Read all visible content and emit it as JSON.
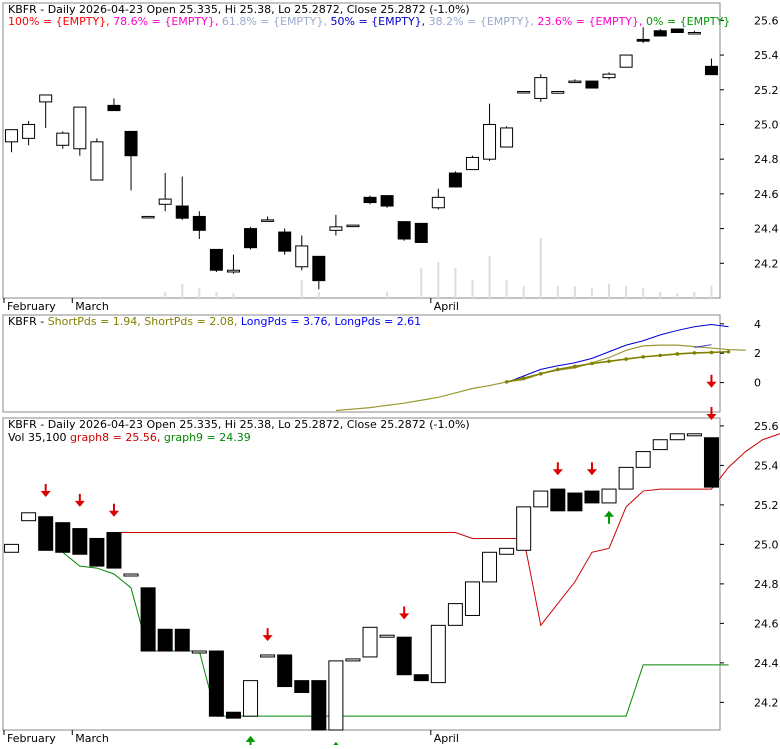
{
  "chart_data": [
    {
      "type": "candlestick",
      "title": "KBFR - Daily 2026-04-23 Open 25.335, Hi 25.38, Lo 25.2872, Close 25.2872 (-1.0%)",
      "ylim": [
        24.0,
        25.7
      ],
      "yticks": [
        24.2,
        24.4,
        24.6,
        24.8,
        25.0,
        25.2,
        25.4,
        25.6
      ],
      "xlabels": [
        {
          "label": "February",
          "i": 0
        },
        {
          "label": "March",
          "i": 4
        },
        {
          "label": "April",
          "i": 25
        }
      ],
      "fib_legend": [
        {
          "text": "100% = {EMPTY},",
          "color": "#ff0000"
        },
        {
          "text": "78.6% = {EMPTY},",
          "color": "#ff00cc"
        },
        {
          "text": "61.8% = {EMPTY},",
          "color": "#99aacc"
        },
        {
          "text": "50% = {EMPTY},",
          "color": "#0000cc"
        },
        {
          "text": "38.2% = {EMPTY},",
          "color": "#99aacc"
        },
        {
          "text": "23.6% = {EMPTY},",
          "color": "#ff00cc"
        },
        {
          "text": "0% = {EMPTY}",
          "color": "#009900"
        }
      ],
      "candles": [
        {
          "o": 24.9,
          "h": 24.96,
          "l": 24.84,
          "c": 24.97
        },
        {
          "o": 24.92,
          "h": 25.02,
          "l": 24.88,
          "c": 25.0
        },
        {
          "o": 25.13,
          "h": 25.16,
          "l": 24.98,
          "c": 25.17
        },
        {
          "o": 24.88,
          "h": 24.96,
          "l": 24.86,
          "c": 24.95
        },
        {
          "o": 24.86,
          "h": 25.1,
          "l": 24.82,
          "c": 25.1
        },
        {
          "o": 24.68,
          "h": 24.92,
          "l": 24.68,
          "c": 24.9
        },
        {
          "o": 25.11,
          "h": 25.15,
          "l": 25.08,
          "c": 25.08
        },
        {
          "o": 24.96,
          "h": 24.96,
          "l": 24.62,
          "c": 24.82
        },
        {
          "o": 24.47,
          "h": 24.47,
          "l": 24.46,
          "c": 24.47
        },
        {
          "o": 24.54,
          "h": 24.72,
          "l": 24.5,
          "c": 24.57
        },
        {
          "o": 24.53,
          "h": 24.7,
          "l": 24.45,
          "c": 24.46
        },
        {
          "o": 24.47,
          "h": 24.5,
          "l": 24.34,
          "c": 24.39
        },
        {
          "o": 24.28,
          "h": 24.28,
          "l": 24.15,
          "c": 24.16
        },
        {
          "o": 24.15,
          "h": 24.25,
          "l": 24.14,
          "c": 24.16
        },
        {
          "o": 24.4,
          "h": 24.41,
          "l": 24.28,
          "c": 24.29
        },
        {
          "o": 24.45,
          "h": 24.47,
          "l": 24.44,
          "c": 24.45
        },
        {
          "o": 24.38,
          "h": 24.4,
          "l": 24.25,
          "c": 24.27
        },
        {
          "o": 24.18,
          "h": 24.36,
          "l": 24.16,
          "c": 24.3
        },
        {
          "o": 24.24,
          "h": 24.24,
          "l": 24.05,
          "c": 24.1
        },
        {
          "o": 24.39,
          "h": 24.48,
          "l": 24.36,
          "c": 24.41
        },
        {
          "o": 24.42,
          "h": 24.42,
          "l": 24.42,
          "c": 24.42
        },
        {
          "o": 24.58,
          "h": 24.59,
          "l": 24.54,
          "c": 24.55
        },
        {
          "o": 24.59,
          "h": 24.59,
          "l": 24.52,
          "c": 24.53
        },
        {
          "o": 24.44,
          "h": 24.44,
          "l": 24.33,
          "c": 24.34
        },
        {
          "o": 24.43,
          "h": 24.43,
          "l": 24.32,
          "c": 24.32
        },
        {
          "o": 24.52,
          "h": 24.63,
          "l": 24.51,
          "c": 24.58
        },
        {
          "o": 24.72,
          "h": 24.73,
          "l": 24.64,
          "c": 24.64
        },
        {
          "o": 24.74,
          "h": 24.82,
          "l": 24.74,
          "c": 24.81
        },
        {
          "o": 24.8,
          "h": 25.12,
          "l": 24.79,
          "c": 25.0
        },
        {
          "o": 24.87,
          "h": 24.99,
          "l": 24.87,
          "c": 24.98
        },
        {
          "o": 25.19,
          "h": 25.19,
          "l": 25.19,
          "c": 25.19
        },
        {
          "o": 25.15,
          "h": 25.29,
          "l": 25.13,
          "c": 25.27
        },
        {
          "o": 25.18,
          "h": 25.18,
          "l": 25.18,
          "c": 25.19
        },
        {
          "o": 25.25,
          "h": 25.26,
          "l": 25.25,
          "c": 25.25
        },
        {
          "o": 25.25,
          "h": 25.25,
          "l": 25.21,
          "c": 25.21
        },
        {
          "o": 25.27,
          "h": 25.3,
          "l": 25.26,
          "c": 25.29
        },
        {
          "o": 25.33,
          "h": 25.4,
          "l": 25.33,
          "c": 25.4
        },
        {
          "o": 25.49,
          "h": 25.56,
          "l": 25.47,
          "c": 25.48
        },
        {
          "o": 25.54,
          "h": 25.55,
          "l": 25.51,
          "c": 25.51
        },
        {
          "o": 25.55,
          "h": 25.55,
          "l": 25.53,
          "c": 25.53
        },
        {
          "o": 25.53,
          "h": 25.54,
          "l": 25.52,
          "c": 25.53
        },
        {
          "o": 25.335,
          "h": 25.38,
          "l": 25.2872,
          "c": 25.2872
        }
      ],
      "volume": [
        0,
        0,
        0,
        0,
        0,
        0,
        0,
        0,
        0,
        0.05,
        0.12,
        0.08,
        0.05,
        0.04,
        0,
        0,
        0,
        0.15,
        0.05,
        0,
        0,
        0,
        0.05,
        0,
        0.25,
        0.3,
        0.25,
        0.15,
        0.35,
        0.15,
        0.1,
        0.5,
        0.1,
        0.1,
        0.08,
        0.12,
        0.1,
        0.08,
        0.05,
        0.04,
        0.05,
        0.1
      ]
    },
    {
      "type": "line",
      "title_parts": [
        {
          "text": "KBFR - ",
          "color": "#000000"
        },
        {
          "text": "ShortPds = 1.94,",
          "color": "#808000"
        },
        {
          "text": "ShortPds = 2.08,",
          "color": "#808000"
        },
        {
          "text": "LongPds = 3.76,",
          "color": "#0000ff"
        },
        {
          "text": "LongPds = 2.61",
          "color": "#0000ff"
        }
      ],
      "ylim": [
        -2.0,
        4.6
      ],
      "yticks": [
        0,
        2,
        4
      ],
      "series": [
        {
          "color": "#999933",
          "width": 1.2,
          "x_start": 19,
          "values": [
            -1.9,
            -1.8,
            -1.7,
            -1.55,
            -1.4,
            -1.2,
            -1.0,
            -0.7,
            -0.4,
            -0.2,
            0.05,
            0.2,
            0.6,
            0.85,
            1.0,
            1.35,
            1.7,
            2.2,
            2.5,
            2.55,
            2.55,
            2.45,
            2.35,
            2.25,
            2.2
          ]
        },
        {
          "color": "#0000cc",
          "width": 1.0,
          "x_start": 29,
          "values": [
            0.0,
            0.45,
            0.9,
            1.15,
            1.35,
            1.65,
            2.1,
            2.55,
            2.85,
            3.25,
            3.55,
            3.8,
            3.95,
            3.8
          ]
        },
        {
          "color": "#808000",
          "width": 1.6,
          "dotted": true,
          "x_start": 29,
          "values": [
            0.05,
            0.3,
            0.6,
            0.9,
            1.1,
            1.3,
            1.45,
            1.6,
            1.75,
            1.85,
            1.95,
            2.02,
            2.05,
            2.1
          ]
        },
        {
          "color": "#3333cc",
          "width": 1.0,
          "x_start": 40,
          "values": [
            2.4,
            2.58
          ]
        }
      ],
      "markers": [
        {
          "i": 41,
          "y": -0.35,
          "dir": "down",
          "color": "#dd0000"
        }
      ]
    },
    {
      "type": "candlestick",
      "title": "KBFR - Daily 2026-04-23 Open 25.335, Hi 25.38, Lo 25.2872, Close 25.2872 (-1.0%)",
      "subtitle_parts": [
        {
          "text": "Vol 35,100",
          "color": "#000000"
        },
        {
          "text": "graph8 = 25.56,",
          "color": "#cc0000"
        },
        {
          "text": "graph9 = 24.39",
          "color": "#008800"
        }
      ],
      "ylim": [
        24.06,
        25.64
      ],
      "yticks": [
        24.2,
        24.4,
        24.6,
        24.8,
        25.0,
        25.2,
        25.4,
        25.6
      ],
      "xlabels": [
        {
          "label": "February",
          "i": 0
        },
        {
          "label": "March",
          "i": 4
        },
        {
          "label": "April",
          "i": 25
        }
      ],
      "candles": [
        {
          "o": 24.96,
          "c": 25.0
        },
        {
          "o": 25.12,
          "c": 25.16
        },
        {
          "o": 25.14,
          "c": 24.97
        },
        {
          "o": 25.11,
          "c": 24.96
        },
        {
          "o": 25.08,
          "c": 24.95
        },
        {
          "o": 25.03,
          "c": 24.89
        },
        {
          "o": 25.06,
          "c": 24.88
        },
        {
          "o": 24.85,
          "c": 24.85
        },
        {
          "o": 24.78,
          "c": 24.46
        },
        {
          "o": 24.57,
          "c": 24.46
        },
        {
          "o": 24.57,
          "c": 24.46
        },
        {
          "o": 24.46,
          "c": 24.46
        },
        {
          "o": 24.46,
          "c": 24.13
        },
        {
          "o": 24.15,
          "c": 24.12
        },
        {
          "o": 24.13,
          "c": 24.31
        },
        {
          "o": 24.43,
          "c": 24.44
        },
        {
          "o": 24.44,
          "c": 24.28
        },
        {
          "o": 24.31,
          "c": 24.25
        },
        {
          "o": 24.31,
          "c": 24.06
        },
        {
          "o": 24.06,
          "c": 24.41
        },
        {
          "o": 24.41,
          "c": 24.42
        },
        {
          "o": 24.43,
          "c": 24.58
        },
        {
          "o": 24.54,
          "c": 24.54
        },
        {
          "o": 24.53,
          "c": 24.34
        },
        {
          "o": 24.34,
          "c": 24.31
        },
        {
          "o": 24.3,
          "c": 24.59
        },
        {
          "o": 24.59,
          "c": 24.7
        },
        {
          "o": 24.64,
          "c": 24.81
        },
        {
          "o": 24.81,
          "c": 24.96
        },
        {
          "o": 24.95,
          "c": 24.98
        },
        {
          "o": 24.97,
          "c": 25.19
        },
        {
          "o": 25.19,
          "c": 25.27
        },
        {
          "o": 25.28,
          "c": 25.17
        },
        {
          "o": 25.26,
          "c": 25.17
        },
        {
          "o": 25.27,
          "c": 25.21
        },
        {
          "o": 25.21,
          "c": 25.28
        },
        {
          "o": 25.28,
          "c": 25.39
        },
        {
          "o": 25.39,
          "c": 25.47
        },
        {
          "o": 25.48,
          "c": 25.53
        },
        {
          "o": 25.53,
          "c": 25.56
        },
        {
          "o": 25.55,
          "c": 25.56
        },
        {
          "o": 25.54,
          "c": 25.29
        }
      ],
      "red_line": {
        "x_start": 6,
        "values": [
          25.06,
          25.06,
          25.06,
          25.06,
          25.06,
          25.06,
          25.06,
          25.06,
          25.06,
          25.06,
          25.06,
          25.06,
          25.06,
          25.06,
          25.06,
          25.06,
          25.06,
          25.06,
          25.06,
          25.06,
          25.06,
          25.03,
          25.03,
          25.03,
          25.03,
          24.59,
          24.7,
          24.81,
          24.96,
          24.98,
          25.19,
          25.27,
          25.28,
          25.28,
          25.28,
          25.28,
          25.39,
          25.47,
          25.53,
          25.56,
          25.56,
          25.56
        ]
      },
      "green_line": {
        "x_start": 3,
        "values": [
          24.96,
          24.89,
          24.88,
          24.85,
          24.78,
          24.46,
          24.46,
          24.46,
          24.46,
          24.13,
          24.13,
          24.13,
          24.13,
          24.13,
          24.13,
          24.13,
          24.13,
          24.13,
          24.13,
          24.13,
          24.13,
          24.13,
          24.13,
          24.13,
          24.13,
          24.13,
          24.13,
          24.13,
          24.13,
          24.13,
          24.13,
          24.13,
          24.13,
          24.13,
          24.39,
          24.39,
          24.39,
          24.39,
          24.39,
          24.39
        ]
      },
      "markers": [
        {
          "i": 2,
          "y": 25.24,
          "dir": "down",
          "color": "#dd0000"
        },
        {
          "i": 4,
          "y": 25.19,
          "dir": "down",
          "color": "#dd0000"
        },
        {
          "i": 6,
          "y": 25.14,
          "dir": "down",
          "color": "#dd0000"
        },
        {
          "i": 14,
          "y": 24.03,
          "dir": "up",
          "color": "#009900"
        },
        {
          "i": 15,
          "y": 24.51,
          "dir": "down",
          "color": "#dd0000"
        },
        {
          "i": 19,
          "y": 24.0,
          "dir": "up",
          "color": "#009900"
        },
        {
          "i": 23,
          "y": 24.62,
          "dir": "down",
          "color": "#dd0000"
        },
        {
          "i": 32,
          "y": 25.35,
          "dir": "down",
          "color": "#dd0000"
        },
        {
          "i": 34,
          "y": 25.35,
          "dir": "down",
          "color": "#dd0000"
        },
        {
          "i": 35,
          "y": 25.17,
          "dir": "up",
          "color": "#009900"
        },
        {
          "i": 41,
          "y": 25.63,
          "dir": "down",
          "color": "#dd0000"
        }
      ]
    }
  ]
}
